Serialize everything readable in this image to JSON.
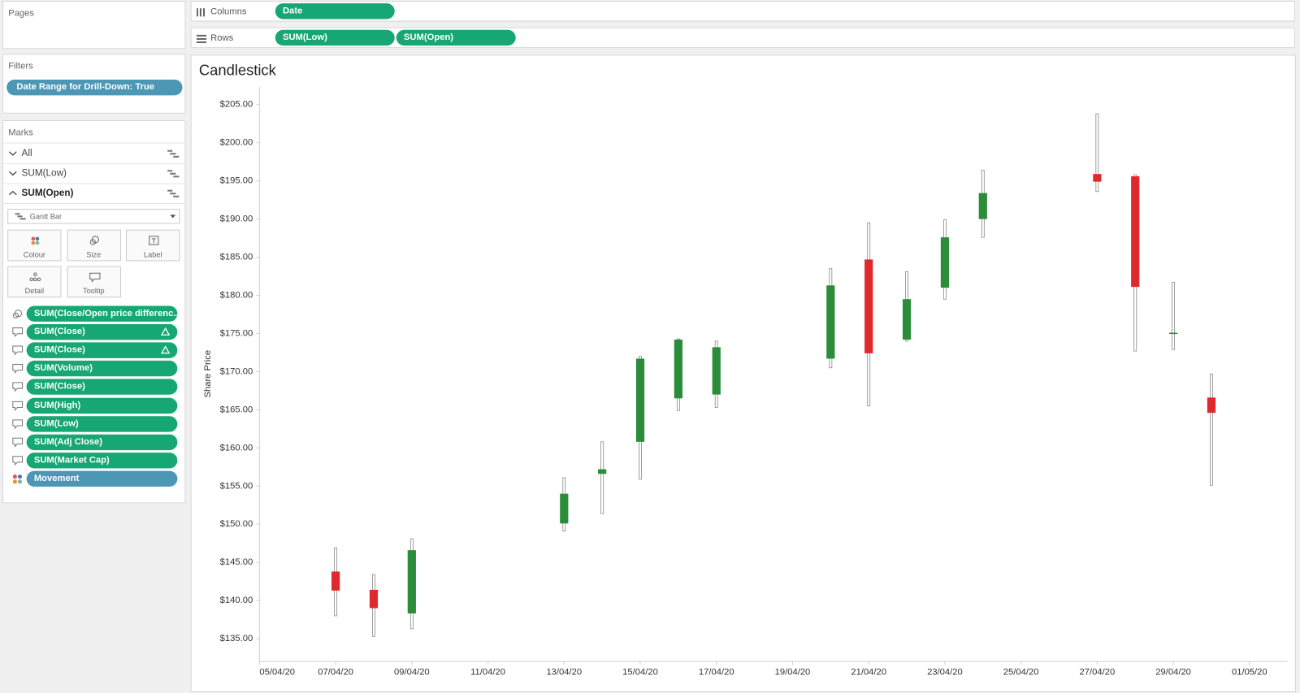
{
  "pages": {
    "title": "Pages"
  },
  "shelves": {
    "columns": {
      "label": "Columns",
      "pills": [
        "Date"
      ]
    },
    "rows": {
      "label": "Rows",
      "pills": [
        "SUM(Low)",
        "SUM(Open)"
      ]
    }
  },
  "filters": {
    "title": "Filters",
    "pills": [
      "Date Range for Drill-Down: True"
    ]
  },
  "marks": {
    "title": "Marks",
    "layers": [
      "All",
      "SUM(Low)",
      "SUM(Open)"
    ],
    "mark_type": "Gantt Bar",
    "cards": [
      "Colour",
      "Size",
      "Label",
      "Detail",
      "Tooltip"
    ],
    "pills": [
      "SUM(Close/Open price differenc..",
      "SUM(Close)",
      "SUM(Close)",
      "SUM(Volume)",
      "SUM(Close)",
      "SUM(High)",
      "SUM(Low)",
      "SUM(Adj Close)",
      "SUM(Market Cap)",
      "Movement"
    ]
  },
  "chart_data": {
    "type": "candlestick",
    "title": "Candlestick",
    "y_label": "Share Price",
    "x": [
      "07/04/20",
      "08/04/20",
      "09/04/20",
      "13/04/20",
      "14/04/20",
      "15/04/20",
      "16/04/20",
      "17/04/20",
      "20/04/20",
      "21/04/20",
      "22/04/20",
      "23/04/20",
      "24/04/20",
      "27/04/20",
      "28/04/20",
      "29/04/20",
      "30/04/20"
    ],
    "open": [
      143.8,
      141.4,
      138.3,
      150.1,
      156.6,
      160.8,
      166.5,
      167.0,
      171.7,
      184.7,
      174.2,
      181.0,
      190.0,
      195.9,
      195.6,
      175.0,
      166.6
    ],
    "high": [
      146.9,
      143.4,
      148.1,
      156.1,
      160.8,
      172.0,
      174.3,
      174.0,
      183.5,
      189.5,
      183.1,
      189.9,
      196.4,
      203.8,
      195.8,
      181.7,
      169.7
    ],
    "low": [
      138.0,
      135.3,
      136.3,
      149.1,
      151.4,
      155.9,
      164.9,
      165.3,
      170.5,
      165.5,
      174.0,
      179.5,
      187.6,
      193.6,
      172.7,
      172.9,
      155.1
    ],
    "close": [
      141.3,
      139.0,
      146.6,
      154.0,
      157.2,
      171.7,
      174.2,
      173.2,
      181.3,
      172.4,
      179.5,
      187.6,
      193.4,
      194.9,
      181.1,
      175.1,
      164.6
    ],
    "up_color": "#2b8c3a",
    "down_color": "#e0292c",
    "xlim": [
      "05/04/20",
      "02/05/20"
    ],
    "xticks": [
      "05/04/20",
      "07/04/20",
      "09/04/20",
      "11/04/20",
      "13/04/20",
      "15/04/20",
      "17/04/20",
      "19/04/20",
      "21/04/20",
      "23/04/20",
      "25/04/20",
      "27/04/20",
      "29/04/20",
      "01/05/20"
    ],
    "ylim": [
      132,
      207.3
    ],
    "yticks": [
      {
        "value": 135,
        "label": "$135.00"
      },
      {
        "value": 140,
        "label": "$140.00"
      },
      {
        "value": 145,
        "label": "$145.00"
      },
      {
        "value": 150,
        "label": "$150.00"
      },
      {
        "value": 155,
        "label": "$155.00"
      },
      {
        "value": 160,
        "label": "$160.00"
      },
      {
        "value": 165,
        "label": "$165.00"
      },
      {
        "value": 170,
        "label": "$170.00"
      },
      {
        "value": 175,
        "label": "$175.00"
      },
      {
        "value": 180,
        "label": "$180.00"
      },
      {
        "value": 185,
        "label": "$185.00"
      },
      {
        "value": 190,
        "label": "$190.00"
      },
      {
        "value": 195,
        "label": "$195.00"
      },
      {
        "value": 200,
        "label": "$200.00"
      },
      {
        "value": 205,
        "label": "$205.00"
      }
    ],
    "grid": false
  }
}
